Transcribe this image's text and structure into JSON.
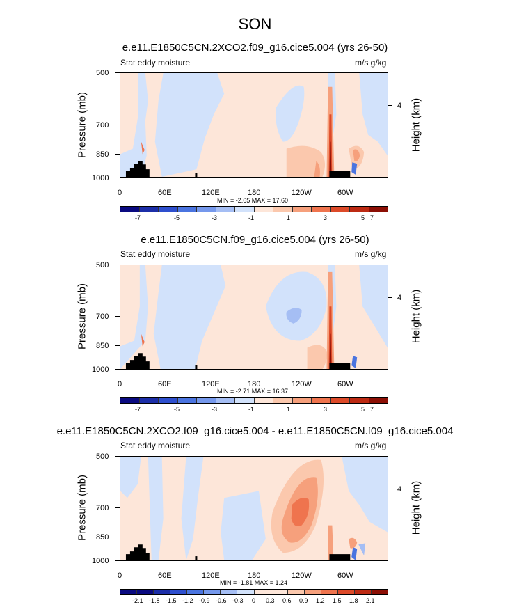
{
  "main_title": "SON",
  "colors": {
    "palette": [
      "#0a0a80",
      "#1c2ea8",
      "#2e4fce",
      "#4a74e0",
      "#7598ec",
      "#a5bef4",
      "#d2e2fb",
      "#fde6d9",
      "#fbc8ad",
      "#f6a07c",
      "#ef744e",
      "#dd4a29",
      "#bd2a13",
      "#8c0f05"
    ]
  },
  "chart_data": [
    {
      "type": "heatmap",
      "title": "e.e11.E1850C5CN.2XCO2.f09_g16.cice5.004 (yrs 26-50)",
      "subtitle_left": "Stat eddy moisture",
      "subtitle_right": "m/s g/kg",
      "ylabel": "Pressure (mb)",
      "y2label": "Height (km)",
      "y_ticks": [
        "500",
        "700",
        "850",
        "1000"
      ],
      "y2_ticks": [
        "4"
      ],
      "x_ticks": [
        "0",
        "60E",
        "120E",
        "180",
        "120W",
        "60W"
      ],
      "stats": "MIN = -2.65   MAX = 17.60",
      "colorbar_labels": [
        "-7",
        "-5",
        "-3",
        "-1",
        "1",
        "3",
        "5",
        "7"
      ],
      "min": -2.65,
      "max": 17.6
    },
    {
      "type": "heatmap",
      "title": "e.e11.E1850C5CN.f09_g16.cice5.004 (yrs 26-50)",
      "subtitle_left": "Stat eddy moisture",
      "subtitle_right": "m/s g/kg",
      "ylabel": "Pressure (mb)",
      "y2label": "Height (km)",
      "y_ticks": [
        "500",
        "700",
        "850",
        "1000"
      ],
      "y2_ticks": [
        "4"
      ],
      "x_ticks": [
        "0",
        "60E",
        "120E",
        "180",
        "120W",
        "60W"
      ],
      "stats": "MIN = -2.71   MAX = 16.37",
      "colorbar_labels": [
        "-7",
        "-5",
        "-3",
        "-1",
        "1",
        "3",
        "5",
        "7"
      ],
      "min": -2.71,
      "max": 16.37
    },
    {
      "type": "heatmap",
      "title": "e.e11.E1850C5CN.2XCO2.f09_g16.cice5.004 - e.e11.E1850C5CN.f09_g16.cice5.004",
      "subtitle_left": "Stat eddy moisture",
      "subtitle_right": "m/s g/kg",
      "ylabel": "Pressure (mb)",
      "y2label": "Height (km)",
      "y_ticks": [
        "500",
        "700",
        "850",
        "1000"
      ],
      "y2_ticks": [
        "4"
      ],
      "x_ticks": [
        "0",
        "60E",
        "120E",
        "180",
        "120W",
        "60W"
      ],
      "stats": "MIN = -1.81   MAX = 1.24",
      "colorbar_labels": [
        "-2.1",
        "-1.8",
        "-1.5",
        "-1.2",
        "-0.9",
        "-0.6",
        "-0.3",
        "0",
        "0.3",
        "0.6",
        "0.9",
        "1.2",
        "1.5",
        "1.8",
        "2.1"
      ],
      "min": -1.81,
      "max": 1.24
    }
  ]
}
